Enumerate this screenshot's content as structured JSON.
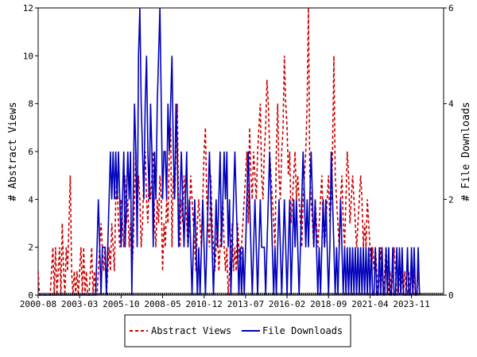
{
  "chart_data": {
    "type": "line",
    "title": "",
    "xlabel": "",
    "ylabel": "# Abstract Views",
    "y2label": "# File Downloads",
    "x_ticks": [
      "2000-08",
      "2003-03",
      "2005-10",
      "2008-05",
      "2010-12",
      "2013-07",
      "2016-02",
      "2018-09",
      "2021-04",
      "2023-11"
    ],
    "x_range": [
      "2000-08",
      "2025-11"
    ],
    "ylim": [
      0,
      12
    ],
    "y_ticks": [
      0,
      2,
      4,
      6,
      8,
      10,
      12
    ],
    "y2lim": [
      0,
      6
    ],
    "y2_ticks": [
      0,
      2,
      4,
      6
    ],
    "legend_position": "bottom-center",
    "series": [
      {
        "name": "Abstract Views",
        "color": "#cc0000",
        "style": "dashed",
        "axis": "left",
        "values": [
          1,
          0,
          0,
          0,
          0,
          0,
          0,
          0,
          0,
          0,
          1,
          2,
          0,
          2,
          0,
          1,
          2,
          0,
          3,
          1,
          0,
          2,
          1,
          3,
          5,
          1,
          0,
          1,
          0,
          1,
          0,
          1,
          2,
          0,
          2,
          0,
          1,
          0,
          0,
          1,
          2,
          0,
          1,
          0,
          0,
          1,
          2,
          3,
          2,
          1,
          2,
          0,
          1,
          2,
          1,
          3,
          2,
          1,
          4,
          5,
          3,
          2,
          4,
          3,
          2,
          5,
          3,
          4,
          2,
          3,
          1,
          2,
          4,
          6,
          3,
          5,
          4,
          2,
          3,
          5,
          6,
          4,
          3,
          5,
          4,
          5,
          6,
          3,
          2,
          4,
          3,
          5,
          4,
          1,
          3,
          2,
          4,
          3,
          6,
          7,
          2,
          5,
          4,
          6,
          8,
          3,
          2,
          4,
          3,
          5,
          4,
          3,
          2,
          3,
          5,
          4,
          3,
          2,
          1,
          3,
          4,
          3,
          2,
          4,
          6,
          7,
          4,
          3,
          2,
          5,
          3,
          2,
          1,
          2,
          3,
          1,
          2,
          3,
          4,
          2,
          1,
          2,
          0,
          1,
          2,
          3,
          1,
          2,
          1,
          3,
          2,
          1,
          2,
          3,
          4,
          5,
          6,
          3,
          7,
          5,
          4,
          6,
          5,
          4,
          6,
          7,
          8,
          5,
          4,
          6,
          7,
          9,
          8,
          6,
          5,
          4,
          3,
          2,
          6,
          8,
          5,
          4,
          6,
          7,
          10,
          8,
          7,
          5,
          6,
          3,
          4,
          5,
          6,
          4,
          5,
          4,
          3,
          2,
          4,
          5,
          6,
          8,
          12,
          5,
          4,
          3,
          2,
          4,
          3,
          2,
          3,
          4,
          5,
          3,
          2,
          3,
          4,
          5,
          3,
          4,
          6,
          10,
          5,
          4,
          3,
          2,
          4,
          5,
          3,
          2,
          4,
          6,
          5,
          3,
          4,
          5,
          4,
          3,
          2,
          3,
          4,
          5,
          4,
          2,
          3,
          2,
          4,
          3,
          2,
          1,
          2,
          1,
          2,
          1,
          0,
          1,
          2,
          1,
          0,
          1,
          2,
          1,
          0,
          1,
          0,
          1,
          2,
          1,
          0,
          0,
          1,
          0,
          1,
          0,
          1,
          0,
          0,
          1,
          0,
          1,
          0,
          1,
          0,
          0,
          1,
          0
        ]
      },
      {
        "name": "File Downloads",
        "color": "#0000bb",
        "style": "solid",
        "axis": "right",
        "values": [
          0,
          0,
          0,
          0,
          0,
          0,
          0,
          0,
          0,
          0,
          0,
          0,
          0,
          0,
          0,
          0,
          0,
          0,
          0,
          0,
          0,
          0,
          0,
          0,
          0,
          0,
          0,
          0,
          0,
          0,
          0,
          0,
          0,
          0,
          0,
          0,
          0,
          0,
          0,
          0,
          0,
          0,
          0,
          0,
          1,
          2,
          1,
          0,
          1,
          1,
          1,
          0,
          1,
          2,
          3,
          2,
          3,
          2,
          3,
          2,
          3,
          2,
          1,
          2,
          3,
          1,
          2,
          3,
          2,
          3,
          0,
          2,
          4,
          3,
          1,
          5,
          6,
          4,
          3,
          2,
          4,
          5,
          3,
          2,
          4,
          3,
          1,
          3,
          2,
          4,
          5,
          6,
          4,
          2,
          3,
          3,
          2,
          4,
          3,
          4,
          5,
          3,
          2,
          4,
          3,
          1,
          2,
          3,
          2,
          1,
          2,
          3,
          1,
          2,
          1,
          0,
          1,
          2,
          1,
          0,
          1,
          0,
          1,
          2,
          1,
          0,
          1,
          2,
          3,
          2,
          1,
          0,
          1,
          2,
          1,
          2,
          3,
          1,
          2,
          3,
          2,
          3,
          1,
          2,
          0,
          1,
          2,
          3,
          2,
          1,
          0,
          1,
          0,
          1,
          0,
          1,
          2,
          3,
          2,
          1,
          0,
          1,
          2,
          1,
          0,
          1,
          2,
          1,
          1,
          1,
          0,
          1,
          2,
          3,
          2,
          1,
          0,
          1,
          0,
          1,
          2,
          1,
          0,
          1,
          2,
          1,
          0,
          1,
          2,
          0,
          1,
          2,
          1,
          2,
          1,
          0,
          1,
          2,
          3,
          2,
          1,
          2,
          1,
          2,
          3,
          2,
          1,
          2,
          1,
          0,
          1,
          0,
          1,
          2,
          1,
          2,
          1,
          0,
          1,
          3,
          2,
          1,
          0,
          1,
          0,
          1,
          2,
          1,
          0,
          1,
          0,
          1,
          0,
          1,
          0,
          1,
          0,
          1,
          0,
          1,
          0,
          1,
          0,
          1,
          0,
          1,
          0,
          1,
          0,
          1,
          0,
          0,
          1,
          0,
          0,
          1,
          0,
          1,
          0,
          0,
          1,
          0,
          1,
          0,
          0,
          1,
          0,
          0,
          1,
          0,
          1,
          0,
          1,
          0,
          0,
          0,
          1,
          0,
          0,
          1,
          0,
          1,
          0,
          0,
          1,
          0
        ]
      }
    ]
  }
}
